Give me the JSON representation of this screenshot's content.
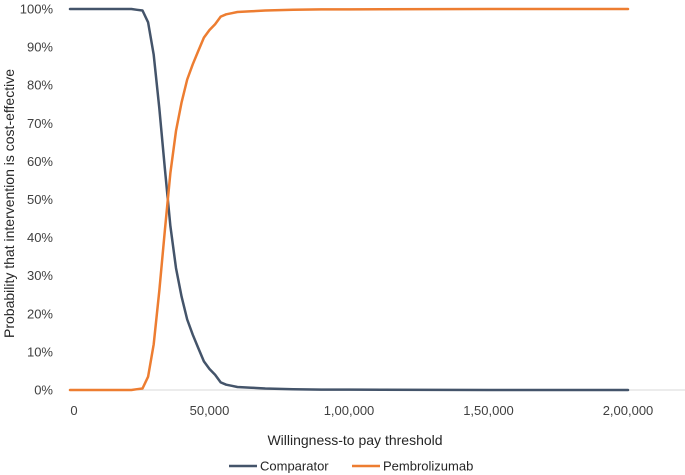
{
  "chart_data": {
    "type": "line",
    "xlabel": "Willingness-to pay threshold",
    "ylabel": "Probability that intervention is cost-effective",
    "xlim": [
      0,
      200000
    ],
    "ylim": [
      0,
      100
    ],
    "x_ticks": [
      0,
      50000,
      100000,
      150000,
      200000
    ],
    "x_tick_labels": [
      "0",
      "50,000",
      "1,00,000",
      "1,50,000",
      "2,00,000"
    ],
    "y_ticks": [
      0,
      10,
      20,
      30,
      40,
      50,
      60,
      70,
      80,
      90,
      100
    ],
    "y_tick_labels": [
      "0%",
      "10%",
      "20%",
      "30%",
      "40%",
      "50%",
      "60%",
      "70%",
      "80%",
      "90%",
      "100%"
    ],
    "grid": false,
    "legend_position": "bottom",
    "series": [
      {
        "name": "Comparator",
        "color": "#44546a",
        "points": [
          [
            0,
            100
          ],
          [
            22000,
            100
          ],
          [
            24000,
            99.8
          ],
          [
            26000,
            99.6
          ],
          [
            28000,
            96.5
          ],
          [
            30000,
            88
          ],
          [
            32000,
            74
          ],
          [
            34000,
            58
          ],
          [
            36000,
            43
          ],
          [
            38000,
            32
          ],
          [
            40000,
            24.5
          ],
          [
            42000,
            18.5
          ],
          [
            44000,
            14.5
          ],
          [
            46000,
            11
          ],
          [
            48000,
            7.5
          ],
          [
            50000,
            5.5
          ],
          [
            52000,
            4
          ],
          [
            54000,
            2
          ],
          [
            56000,
            1.4
          ],
          [
            58000,
            1.1
          ],
          [
            60000,
            0.8
          ],
          [
            65000,
            0.6
          ],
          [
            70000,
            0.4
          ],
          [
            80000,
            0.2
          ],
          [
            90000,
            0.1
          ],
          [
            100000,
            0.1
          ],
          [
            150000,
            0
          ],
          [
            200000,
            0
          ]
        ]
      },
      {
        "name": "Pembrolizumab",
        "color": "#ed7d31",
        "points": [
          [
            0,
            0
          ],
          [
            22000,
            0
          ],
          [
            24000,
            0.2
          ],
          [
            26000,
            0.4
          ],
          [
            28000,
            3.5
          ],
          [
            30000,
            12
          ],
          [
            32000,
            26
          ],
          [
            34000,
            42
          ],
          [
            36000,
            57
          ],
          [
            38000,
            68
          ],
          [
            40000,
            75.5
          ],
          [
            42000,
            81.5
          ],
          [
            44000,
            85.5
          ],
          [
            46000,
            89
          ],
          [
            48000,
            92.5
          ],
          [
            50000,
            94.5
          ],
          [
            52000,
            96
          ],
          [
            54000,
            98
          ],
          [
            56000,
            98.6
          ],
          [
            58000,
            98.9
          ],
          [
            60000,
            99.2
          ],
          [
            65000,
            99.4
          ],
          [
            70000,
            99.6
          ],
          [
            80000,
            99.8
          ],
          [
            90000,
            99.9
          ],
          [
            100000,
            99.9
          ],
          [
            150000,
            100
          ],
          [
            200000,
            100
          ]
        ]
      }
    ]
  }
}
